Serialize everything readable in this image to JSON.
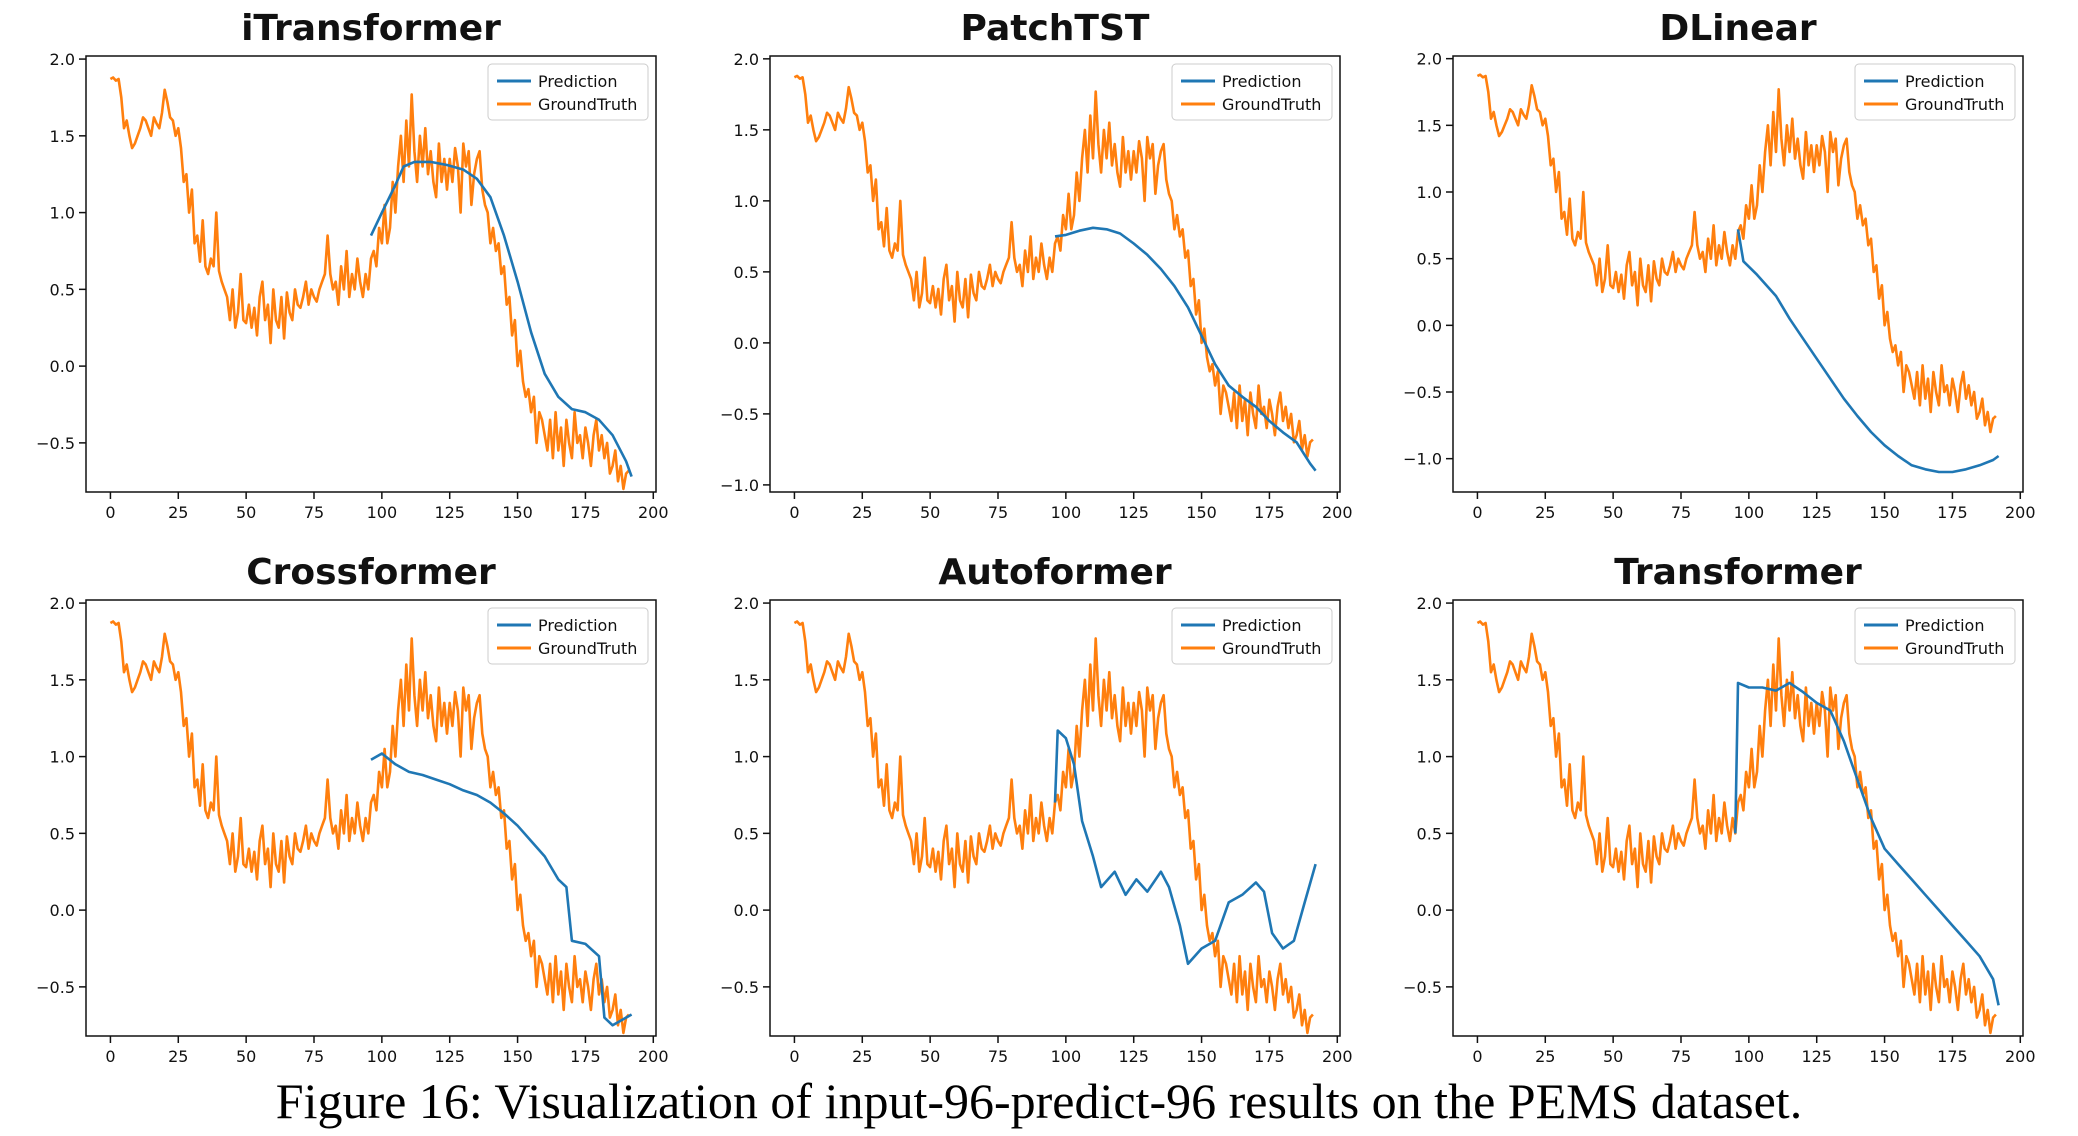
{
  "caption": "Figure 16: Visualization of input-96-predict-96 results on the PEMS dataset.",
  "colors": {
    "prediction": "#1f77b4",
    "groundtruth": "#ff7f0e",
    "highlight_title": "#b34700",
    "title": "#111111"
  },
  "legend": {
    "prediction": "Prediction",
    "groundtruth": "GroundTruth"
  },
  "chart_data": [
    {
      "type": "line",
      "title": "iTransformer",
      "highlight": true,
      "x": [
        0,
        192
      ],
      "xlim": [
        -9,
        201
      ],
      "ylim": [
        -0.82,
        2.02
      ],
      "xticks": [
        0,
        25,
        50,
        75,
        100,
        125,
        150,
        175,
        200
      ],
      "yticks": [
        -0.5,
        0.0,
        0.5,
        1.0,
        1.5,
        2.0
      ],
      "ytick_labels": [
        "−0.5",
        "0.0",
        "0.5",
        "1.0",
        "1.5",
        "2.0"
      ],
      "legend_position": "top-right",
      "prediction": [
        [
          96,
          0.85
        ],
        [
          100,
          1.0
        ],
        [
          105,
          1.18
        ],
        [
          108,
          1.3
        ],
        [
          112,
          1.33
        ],
        [
          118,
          1.33
        ],
        [
          124,
          1.31
        ],
        [
          130,
          1.28
        ],
        [
          135,
          1.22
        ],
        [
          140,
          1.1
        ],
        [
          145,
          0.85
        ],
        [
          150,
          0.55
        ],
        [
          155,
          0.22
        ],
        [
          160,
          -0.05
        ],
        [
          165,
          -0.2
        ],
        [
          170,
          -0.28
        ],
        [
          175,
          -0.3
        ],
        [
          180,
          -0.35
        ],
        [
          185,
          -0.45
        ],
        [
          190,
          -0.62
        ],
        [
          192,
          -0.72
        ]
      ]
    },
    {
      "type": "line",
      "title": "PatchTST",
      "highlight": false,
      "x": [
        0,
        192
      ],
      "xlim": [
        -9,
        201
      ],
      "ylim": [
        -1.05,
        2.02
      ],
      "xticks": [
        0,
        25,
        50,
        75,
        100,
        125,
        150,
        175,
        200
      ],
      "yticks": [
        -1.0,
        -0.5,
        0.0,
        0.5,
        1.0,
        1.5,
        2.0
      ],
      "ytick_labels": [
        "−1.0",
        "−0.5",
        "0.0",
        "0.5",
        "1.0",
        "1.5",
        "2.0"
      ],
      "legend_position": "top-right",
      "prediction": [
        [
          96,
          0.75
        ],
        [
          100,
          0.76
        ],
        [
          105,
          0.79
        ],
        [
          110,
          0.81
        ],
        [
          115,
          0.8
        ],
        [
          120,
          0.77
        ],
        [
          125,
          0.7
        ],
        [
          130,
          0.62
        ],
        [
          135,
          0.52
        ],
        [
          140,
          0.4
        ],
        [
          145,
          0.25
        ],
        [
          150,
          0.05
        ],
        [
          155,
          -0.15
        ],
        [
          160,
          -0.3
        ],
        [
          165,
          -0.38
        ],
        [
          170,
          -0.45
        ],
        [
          175,
          -0.55
        ],
        [
          180,
          -0.63
        ],
        [
          185,
          -0.7
        ],
        [
          190,
          -0.85
        ],
        [
          192,
          -0.9
        ]
      ]
    },
    {
      "type": "line",
      "title": "DLinear",
      "highlight": false,
      "x": [
        0,
        192
      ],
      "xlim": [
        -9,
        201
      ],
      "ylim": [
        -1.25,
        2.02
      ],
      "xticks": [
        0,
        25,
        50,
        75,
        100,
        125,
        150,
        175,
        200
      ],
      "yticks": [
        -1.0,
        -0.5,
        0.0,
        0.5,
        1.0,
        1.5,
        2.0
      ],
      "ytick_labels": [
        "−1.0",
        "−0.5",
        "0.0",
        "0.5",
        "1.0",
        "1.5",
        "2.0"
      ],
      "legend_position": "top-right",
      "prediction": [
        [
          96,
          0.72
        ],
        [
          98,
          0.48
        ],
        [
          103,
          0.38
        ],
        [
          110,
          0.22
        ],
        [
          115,
          0.05
        ],
        [
          120,
          -0.1
        ],
        [
          125,
          -0.25
        ],
        [
          130,
          -0.4
        ],
        [
          135,
          -0.55
        ],
        [
          140,
          -0.68
        ],
        [
          145,
          -0.8
        ],
        [
          150,
          -0.9
        ],
        [
          155,
          -0.98
        ],
        [
          160,
          -1.05
        ],
        [
          165,
          -1.08
        ],
        [
          170,
          -1.1
        ],
        [
          175,
          -1.1
        ],
        [
          180,
          -1.08
        ],
        [
          185,
          -1.05
        ],
        [
          190,
          -1.01
        ],
        [
          192,
          -0.98
        ]
      ]
    },
    {
      "type": "line",
      "title": "Crossformer",
      "highlight": false,
      "x": [
        0,
        192
      ],
      "xlim": [
        -9,
        201
      ],
      "ylim": [
        -0.82,
        2.02
      ],
      "xticks": [
        0,
        25,
        50,
        75,
        100,
        125,
        150,
        175,
        200
      ],
      "yticks": [
        -0.5,
        0.0,
        0.5,
        1.0,
        1.5,
        2.0
      ],
      "ytick_labels": [
        "−0.5",
        "0.0",
        "0.5",
        "1.0",
        "1.5",
        "2.0"
      ],
      "legend_position": "top-right",
      "prediction": [
        [
          96,
          0.98
        ],
        [
          100,
          1.02
        ],
        [
          105,
          0.95
        ],
        [
          110,
          0.9
        ],
        [
          115,
          0.88
        ],
        [
          120,
          0.85
        ],
        [
          125,
          0.82
        ],
        [
          130,
          0.78
        ],
        [
          135,
          0.75
        ],
        [
          140,
          0.7
        ],
        [
          145,
          0.63
        ],
        [
          150,
          0.55
        ],
        [
          155,
          0.45
        ],
        [
          160,
          0.35
        ],
        [
          165,
          0.2
        ],
        [
          168,
          0.15
        ],
        [
          170,
          -0.2
        ],
        [
          175,
          -0.22
        ],
        [
          180,
          -0.3
        ],
        [
          182,
          -0.7
        ],
        [
          185,
          -0.75
        ],
        [
          190,
          -0.7
        ],
        [
          192,
          -0.68
        ]
      ]
    },
    {
      "type": "line",
      "title": "Autoformer",
      "highlight": false,
      "x": [
        0,
        192
      ],
      "xlim": [
        -9,
        201
      ],
      "ylim": [
        -0.82,
        2.02
      ],
      "xticks": [
        0,
        25,
        50,
        75,
        100,
        125,
        150,
        175,
        200
      ],
      "yticks": [
        -0.5,
        0.0,
        0.5,
        1.0,
        1.5,
        2.0
      ],
      "ytick_labels": [
        "−0.5",
        "0.0",
        "0.5",
        "1.0",
        "1.5",
        "2.0"
      ],
      "legend_position": "top-right",
      "prediction": [
        [
          96,
          0.7
        ],
        [
          97,
          1.17
        ],
        [
          100,
          1.12
        ],
        [
          103,
          0.95
        ],
        [
          106,
          0.58
        ],
        [
          110,
          0.35
        ],
        [
          113,
          0.15
        ],
        [
          118,
          0.25
        ],
        [
          122,
          0.1
        ],
        [
          126,
          0.2
        ],
        [
          130,
          0.12
        ],
        [
          135,
          0.25
        ],
        [
          138,
          0.15
        ],
        [
          142,
          -0.1
        ],
        [
          145,
          -0.35
        ],
        [
          150,
          -0.25
        ],
        [
          155,
          -0.2
        ],
        [
          160,
          0.05
        ],
        [
          165,
          0.1
        ],
        [
          170,
          0.18
        ],
        [
          173,
          0.12
        ],
        [
          176,
          -0.15
        ],
        [
          180,
          -0.25
        ],
        [
          184,
          -0.2
        ],
        [
          188,
          0.05
        ],
        [
          192,
          0.3
        ]
      ]
    },
    {
      "type": "line",
      "title": "Transformer",
      "highlight": false,
      "x": [
        0,
        192
      ],
      "xlim": [
        -9,
        201
      ],
      "ylim": [
        -0.82,
        2.02
      ],
      "xticks": [
        0,
        25,
        50,
        75,
        100,
        125,
        150,
        175,
        200
      ],
      "yticks": [
        -0.5,
        0.0,
        0.5,
        1.0,
        1.5,
        2.0
      ],
      "ytick_labels": [
        "−0.5",
        "0.0",
        "0.5",
        "1.0",
        "1.5",
        "2.0"
      ],
      "legend_position": "top-right",
      "prediction": [
        [
          95,
          0.5
        ],
        [
          96,
          1.48
        ],
        [
          100,
          1.45
        ],
        [
          105,
          1.45
        ],
        [
          110,
          1.43
        ],
        [
          115,
          1.48
        ],
        [
          120,
          1.42
        ],
        [
          125,
          1.35
        ],
        [
          130,
          1.3
        ],
        [
          135,
          1.1
        ],
        [
          140,
          0.85
        ],
        [
          145,
          0.6
        ],
        [
          150,
          0.4
        ],
        [
          155,
          0.3
        ],
        [
          160,
          0.2
        ],
        [
          165,
          0.1
        ],
        [
          170,
          0.0
        ],
        [
          175,
          -0.1
        ],
        [
          180,
          -0.2
        ],
        [
          185,
          -0.3
        ],
        [
          190,
          -0.45
        ],
        [
          192,
          -0.62
        ]
      ]
    }
  ],
  "groundtruth_shared": [
    1.87,
    1.88,
    1.86,
    1.87,
    1.75,
    1.55,
    1.6,
    1.5,
    1.42,
    1.45,
    1.5,
    1.55,
    1.62,
    1.6,
    1.55,
    1.5,
    1.62,
    1.58,
    1.55,
    1.65,
    1.8,
    1.72,
    1.62,
    1.6,
    1.5,
    1.55,
    1.42,
    1.2,
    1.25,
    1.0,
    1.15,
    0.8,
    0.85,
    0.68,
    0.95,
    0.65,
    0.6,
    0.7,
    0.65,
    1.0,
    0.62,
    0.55,
    0.5,
    0.45,
    0.3,
    0.5,
    0.25,
    0.35,
    0.6,
    0.3,
    0.28,
    0.4,
    0.25,
    0.38,
    0.2,
    0.45,
    0.55,
    0.3,
    0.4,
    0.15,
    0.5,
    0.3,
    0.25,
    0.45,
    0.18,
    0.48,
    0.35,
    0.3,
    0.5,
    0.4,
    0.38,
    0.45,
    0.55,
    0.4,
    0.5,
    0.45,
    0.42,
    0.5,
    0.55,
    0.6,
    0.85,
    0.6,
    0.5,
    0.55,
    0.4,
    0.65,
    0.5,
    0.75,
    0.45,
    0.6,
    0.5,
    0.7,
    0.55,
    0.45,
    0.6,
    0.5,
    0.7,
    0.75,
    0.65,
    0.9,
    0.8,
    1.05,
    0.8,
    0.9,
    1.2,
    1.0,
    1.3,
    1.5,
    1.2,
    1.6,
    1.3,
    1.77,
    1.4,
    1.2,
    1.5,
    1.3,
    1.55,
    1.25,
    1.4,
    1.2,
    1.1,
    1.45,
    1.2,
    1.35,
    1.15,
    1.35,
    1.2,
    1.42,
    1.3,
    1.0,
    1.45,
    1.3,
    1.4,
    1.05,
    1.25,
    1.35,
    1.4,
    1.15,
    1.05,
    1.0,
    0.8,
    0.9,
    0.75,
    0.8,
    0.6,
    0.65,
    0.4,
    0.45,
    0.2,
    0.3,
    0.0,
    0.1,
    -0.1,
    -0.2,
    -0.15,
    -0.3,
    -0.2,
    -0.5,
    -0.3,
    -0.35,
    -0.45,
    -0.55,
    -0.35,
    -0.6,
    -0.3,
    -0.55,
    -0.4,
    -0.65,
    -0.35,
    -0.5,
    -0.6,
    -0.3,
    -0.5,
    -0.45,
    -0.6,
    -0.4,
    -0.5,
    -0.65,
    -0.45,
    -0.35,
    -0.55,
    -0.45,
    -0.6,
    -0.5,
    -0.7,
    -0.65,
    -0.55,
    -0.75,
    -0.65,
    -0.8,
    -0.7,
    -0.68
  ]
}
